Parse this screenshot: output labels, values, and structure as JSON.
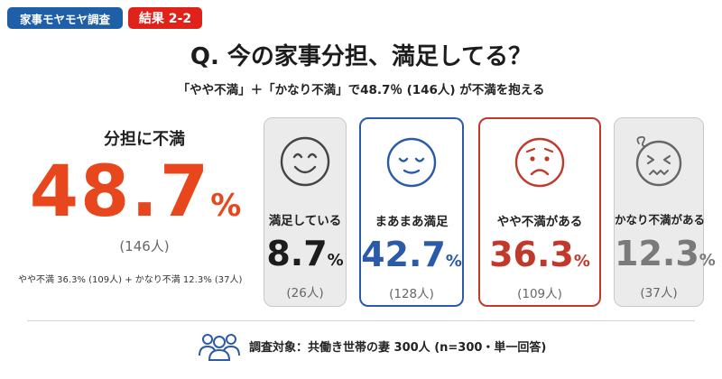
{
  "tags": {
    "series": "家事モヤモヤ調査",
    "result": "結果 2-2"
  },
  "title": "Q. 今の家事分担、満足してる？",
  "subtitle": "「やや不満」＋「かなり不満」で48.7％ (146人) が不満を抱える",
  "summary": {
    "label": "分担に不満",
    "value": "48.7",
    "unit": "%",
    "count": "(146人)",
    "breakdown": "やや不満 36.3% (109人) + かなり不満 12.3% (37人)"
  },
  "colors": {
    "accent_orange": "#e8471d",
    "blue": "#2a5aa8",
    "red": "#c0392b",
    "gray": "#7a7a7a",
    "tag_blue": "#1f5fa8",
    "tag_red": "#e0231a"
  },
  "chart_data": {
    "type": "bar",
    "categories": [
      "満足している",
      "まあまあ満足",
      "やや不満がある",
      "かなり不満がある"
    ],
    "values": [
      8.7,
      42.7,
      36.3,
      12.3
    ],
    "counts": [
      26,
      128,
      109,
      37
    ],
    "unit": "%"
  },
  "cards": [
    {
      "label": "満足している",
      "value": "8.7",
      "unit": "%",
      "count": "(26人)",
      "icon": "smiling-face-icon"
    },
    {
      "label": "まあまあ満足",
      "value": "42.7",
      "unit": "%",
      "count": "(128人)",
      "icon": "content-face-icon"
    },
    {
      "label": "やや不満がある",
      "value": "36.3",
      "unit": "%",
      "count": "(109人)",
      "icon": "worried-face-icon"
    },
    {
      "label": "かなり不満がある",
      "value": "12.3",
      "unit": "%",
      "count": "(37人)",
      "icon": "frustrated-face-icon"
    }
  ],
  "footer": {
    "text": "調査対象：共働き世帯の妻 300人 (n=300・単一回答)",
    "icon": "people-group-icon"
  }
}
